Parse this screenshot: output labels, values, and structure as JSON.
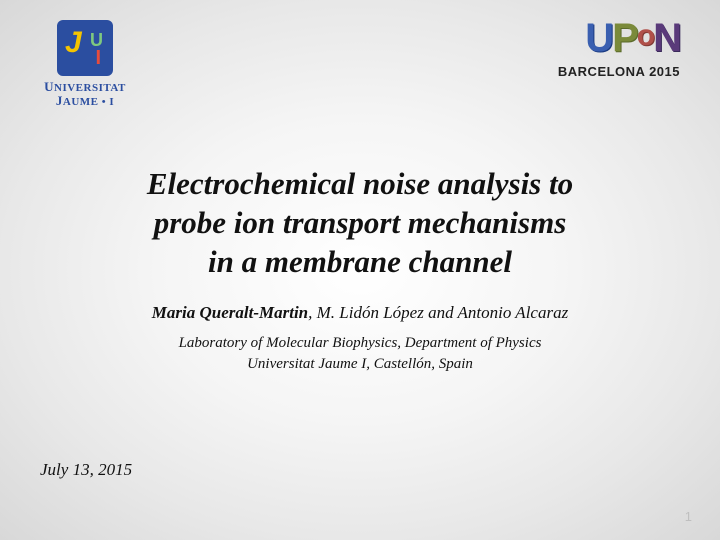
{
  "background": {
    "gradient_center": "#ffffff",
    "gradient_mid": "#e8e8e8",
    "gradient_edge": "#d8d8d8"
  },
  "logo_left": {
    "uni_line1_prefix_big": "U",
    "uni_line1_rest": "NIVERSITAT",
    "uni_line2_prefix_big": "J",
    "uni_line2_rest": "AUME • I",
    "badge_bg": "#2b4ea0",
    "glyph_j_color": "#f5c400",
    "glyph_u_color": "#7fc97f",
    "glyph_i_color": "#e74c3c",
    "text_color": "#2b4ea0"
  },
  "logo_right": {
    "letters": [
      "U",
      "P",
      "o",
      "N"
    ],
    "letter_colors": [
      "#3a5fb0",
      "#7a8a3a",
      "#b0504a",
      "#5a3a7a"
    ],
    "conference_text": "BARCELONA  2015",
    "conference_color": "#222222"
  },
  "title": {
    "line1": "Electrochemical noise analysis to",
    "line2": "probe ion transport mechanisms",
    "line3": "in a membrane channel",
    "font_size_pt": 31,
    "font_style": "italic-bold",
    "color": "#111111"
  },
  "authors": {
    "lead": "Maria Queralt-Martin",
    "rest": ", M. Lidón López and Antonio Alcaraz",
    "font_size_pt": 17,
    "color": "#111111"
  },
  "affiliation": {
    "line1": "Laboratory of Molecular Biophysics, Department of Physics",
    "line2": "Universitat Jaume I, Castellón, Spain",
    "font_size_pt": 15,
    "color": "#111111"
  },
  "date": {
    "text": "July 13, 2015",
    "font_size_pt": 17,
    "color": "#111111"
  },
  "page_number": {
    "text": "1",
    "color": "#bfbfbf",
    "font_size_pt": 13
  }
}
